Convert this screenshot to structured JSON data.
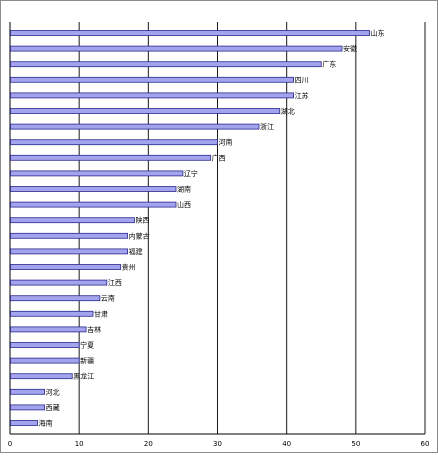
{
  "chart_data": {
    "type": "bar",
    "orientation": "horizontal",
    "title": "",
    "xlabel": "",
    "ylabel": "",
    "xlim": [
      0,
      60
    ],
    "x_ticks": [
      0,
      10,
      20,
      30,
      40,
      50,
      60
    ],
    "grid": "vertical",
    "legend": "none",
    "bar_fill": "#a3a3ee",
    "bar_stroke": "#2a2a8c",
    "categories": [
      "山东",
      "安徽",
      "广东",
      "四川",
      "江苏",
      "湖北",
      "浙江",
      "河南",
      "广西",
      "辽宁",
      "湖南",
      "山西",
      "陕西",
      "内蒙古",
      "福建",
      "贵州",
      "江西",
      "云南",
      "甘肃",
      "吉林",
      "宁夏",
      "新疆",
      "黑龙江",
      "河北",
      "西藏",
      "海南"
    ],
    "values": [
      52,
      48,
      45,
      41,
      41,
      39,
      36,
      30,
      29,
      25,
      24,
      24,
      18,
      17,
      17,
      16,
      14,
      13,
      12,
      11,
      10,
      10,
      9,
      5,
      5,
      4
    ]
  }
}
